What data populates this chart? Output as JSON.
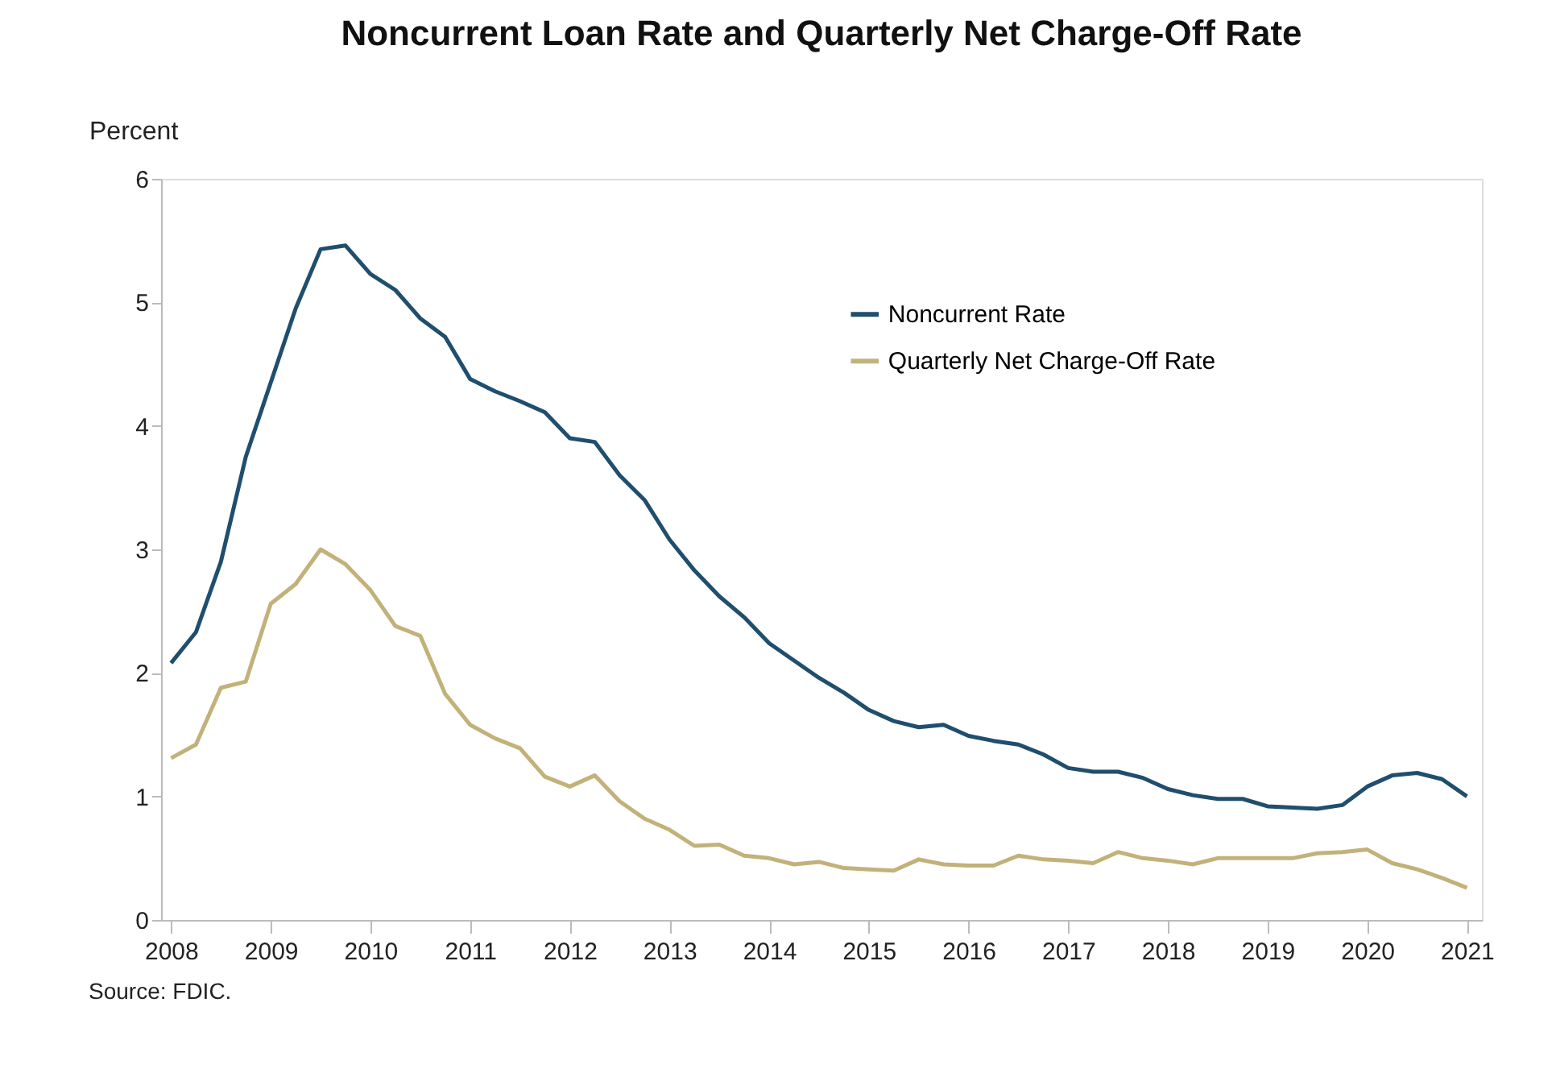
{
  "chart_data": {
    "type": "line",
    "title": "Noncurrent Loan Rate and Quarterly Net Charge-Off Rate",
    "ylabel": "Percent",
    "x": [
      2008.0,
      2008.25,
      2008.5,
      2008.75,
      2009.0,
      2009.25,
      2009.5,
      2009.75,
      2010.0,
      2010.25,
      2010.5,
      2010.75,
      2011.0,
      2011.25,
      2011.5,
      2011.75,
      2012.0,
      2012.25,
      2012.5,
      2012.75,
      2013.0,
      2013.25,
      2013.5,
      2013.75,
      2014.0,
      2014.25,
      2014.5,
      2014.75,
      2015.0,
      2015.25,
      2015.5,
      2015.75,
      2016.0,
      2016.25,
      2016.5,
      2016.75,
      2017.0,
      2017.25,
      2017.5,
      2017.75,
      2018.0,
      2018.25,
      2018.5,
      2018.75,
      2019.0,
      2019.25,
      2019.5,
      2019.75,
      2020.0,
      2020.25,
      2020.5,
      2020.75,
      2021.0
    ],
    "series": [
      {
        "name": "Noncurrent Rate",
        "color": "#1f4e6e",
        "values": [
          2.08,
          2.33,
          2.9,
          3.75,
          4.35,
          4.95,
          5.43,
          5.46,
          5.23,
          5.1,
          4.87,
          4.72,
          4.38,
          4.28,
          4.2,
          4.11,
          3.9,
          3.87,
          3.6,
          3.4,
          3.08,
          2.83,
          2.62,
          2.45,
          2.24,
          2.1,
          1.96,
          1.84,
          1.7,
          1.61,
          1.56,
          1.58,
          1.49,
          1.45,
          1.42,
          1.34,
          1.23,
          1.2,
          1.2,
          1.15,
          1.06,
          1.01,
          0.98,
          0.98,
          0.92,
          0.91,
          0.9,
          0.93,
          1.08,
          1.17,
          1.19,
          1.14,
          1.0
        ]
      },
      {
        "name": "Quarterly Net Charge-Off Rate",
        "color": "#c2b27a",
        "values": [
          1.31,
          1.42,
          1.88,
          1.93,
          2.56,
          2.72,
          3.0,
          2.88,
          2.67,
          2.38,
          2.3,
          1.83,
          1.58,
          1.47,
          1.39,
          1.16,
          1.08,
          1.17,
          0.96,
          0.82,
          0.73,
          0.6,
          0.61,
          0.52,
          0.5,
          0.45,
          0.47,
          0.42,
          0.41,
          0.4,
          0.49,
          0.45,
          0.44,
          0.44,
          0.52,
          0.49,
          0.48,
          0.46,
          0.55,
          0.5,
          0.48,
          0.45,
          0.5,
          0.5,
          0.5,
          0.5,
          0.54,
          0.55,
          0.57,
          0.46,
          0.41,
          0.34,
          0.26
        ]
      }
    ],
    "xlim": [
      2007.9,
      2021.15
    ],
    "xticks": [
      2008,
      2009,
      2010,
      2011,
      2012,
      2013,
      2014,
      2015,
      2016,
      2017,
      2018,
      2019,
      2020,
      2021
    ],
    "ylim": [
      0,
      6
    ],
    "yticks": [
      0,
      1,
      2,
      3,
      4,
      5,
      6
    ],
    "grid": false,
    "legend": "top right",
    "line_style": "solid",
    "marker": "none",
    "annotations": [
      "Source: FDIC."
    ]
  }
}
